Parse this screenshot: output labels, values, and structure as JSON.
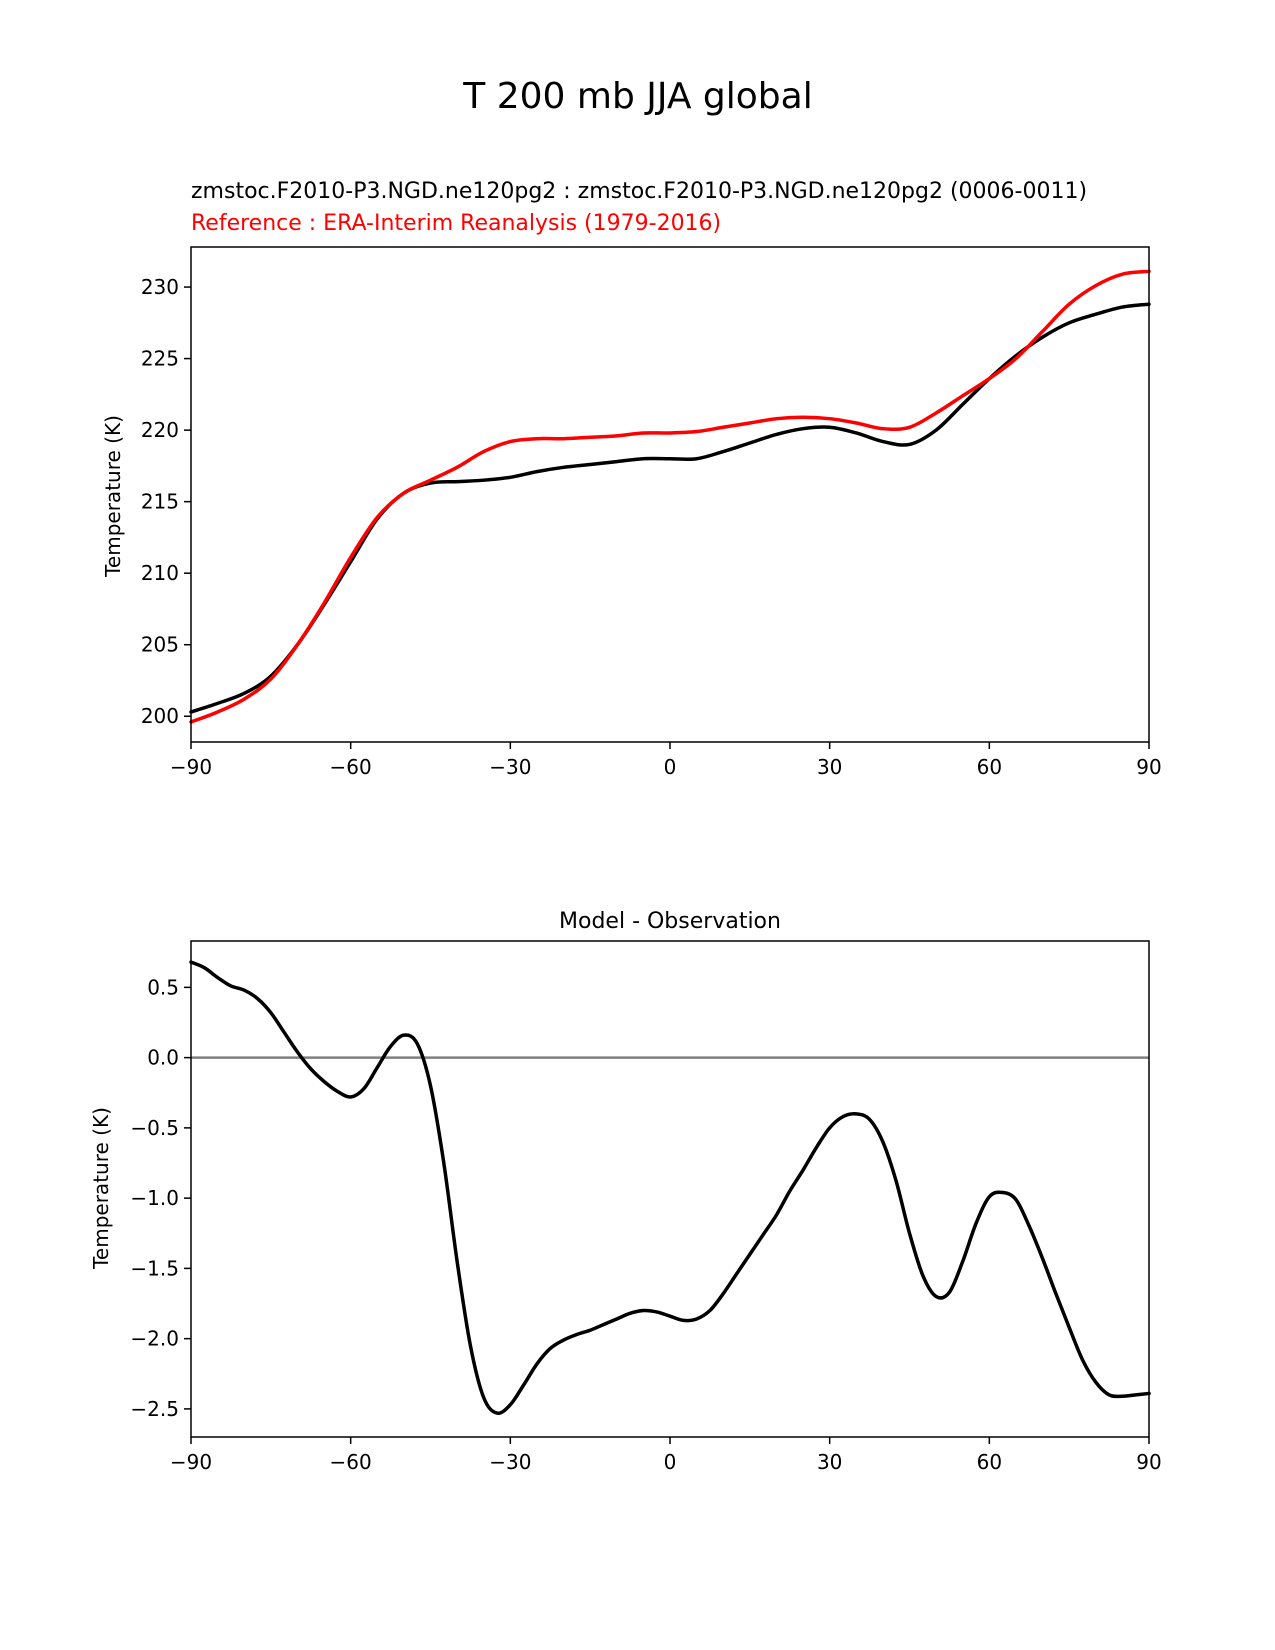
{
  "figure_title": "T 200 mb JJA global",
  "chart_data": [
    {
      "type": "line",
      "title": "zmstoc.F2010-P3.NGD.ne120pg2 : zmstoc.F2010-P3.NGD.ne120pg2 (0006-0011)",
      "subtitle": "Reference : ERA-Interim Reanalysis (1979-2016)",
      "xlabel": "",
      "ylabel": "Temperature (K)",
      "xlim": [
        -90,
        90
      ],
      "ylim": [
        198.2,
        232.8
      ],
      "xticks": [
        -90,
        -60,
        -30,
        0,
        30,
        60,
        90
      ],
      "xtick_labels": [
        "−90",
        "−60",
        "−30",
        "0",
        "30",
        "60",
        "90"
      ],
      "yticks": [
        200,
        205,
        210,
        215,
        220,
        225,
        230
      ],
      "ytick_labels": [
        "200",
        "205",
        "210",
        "215",
        "220",
        "225",
        "230"
      ],
      "grid": false,
      "series": [
        {
          "name": "zmstoc.F2010-P3.NGD.ne120pg2",
          "color": "#000000",
          "x": [
            -90,
            -85,
            -80,
            -75,
            -70,
            -65,
            -60,
            -55,
            -50,
            -45,
            -40,
            -35,
            -30,
            -25,
            -20,
            -15,
            -10,
            -5,
            0,
            5,
            10,
            15,
            20,
            25,
            30,
            35,
            40,
            45,
            50,
            55,
            60,
            65,
            70,
            75,
            80,
            85,
            90
          ],
          "values": [
            200.3,
            200.9,
            201.6,
            202.8,
            205.0,
            207.8,
            210.8,
            213.8,
            215.6,
            216.3,
            216.4,
            216.5,
            216.7,
            217.1,
            217.4,
            217.6,
            217.8,
            218.0,
            218.0,
            218.0,
            218.5,
            219.1,
            219.7,
            220.1,
            220.2,
            219.8,
            219.2,
            219.0,
            220.0,
            221.8,
            223.6,
            225.2,
            226.5,
            227.5,
            228.1,
            228.6,
            228.8
          ]
        },
        {
          "name": "Reference : ERA-Interim Reanalysis (1979-2016)",
          "color": "#ff0000",
          "x": [
            -90,
            -85,
            -80,
            -75,
            -70,
            -65,
            -60,
            -55,
            -50,
            -45,
            -40,
            -35,
            -30,
            -25,
            -20,
            -15,
            -10,
            -5,
            0,
            5,
            10,
            15,
            20,
            25,
            30,
            35,
            40,
            45,
            50,
            55,
            60,
            65,
            70,
            75,
            80,
            85,
            90
          ],
          "values": [
            199.6,
            200.3,
            201.2,
            202.6,
            205.0,
            207.9,
            211.1,
            213.9,
            215.6,
            216.5,
            217.4,
            218.5,
            219.2,
            219.4,
            219.4,
            219.5,
            219.6,
            219.8,
            219.8,
            219.9,
            220.2,
            220.5,
            220.8,
            220.9,
            220.8,
            220.5,
            220.1,
            220.2,
            221.2,
            222.4,
            223.6,
            225.0,
            226.9,
            228.8,
            230.1,
            230.9,
            231.1
          ]
        }
      ]
    },
    {
      "type": "line",
      "title": "Model - Observation",
      "xlabel": "",
      "ylabel": "Temperature (K)",
      "xlim": [
        -90,
        90
      ],
      "ylim": [
        -2.7,
        0.83
      ],
      "xticks": [
        -90,
        -60,
        -30,
        0,
        30,
        60,
        90
      ],
      "xtick_labels": [
        "−90",
        "−60",
        "−30",
        "0",
        "30",
        "60",
        "90"
      ],
      "yticks": [
        0.5,
        0.0,
        -0.5,
        -1.0,
        -1.5,
        -2.0,
        -2.5
      ],
      "ytick_labels": [
        "0.5",
        "0.0",
        "−0.5",
        "−1.0",
        "−1.5",
        "−2.0",
        "−2.5"
      ],
      "grid": false,
      "zero_line": {
        "y": 0.0,
        "color": "#808080"
      },
      "series": [
        {
          "name": "Model - Observation",
          "color": "#000000",
          "x": [
            -90,
            -87.5,
            -85,
            -82.5,
            -80,
            -77.5,
            -75,
            -72.5,
            -70,
            -67.5,
            -65,
            -62.5,
            -60,
            -57.5,
            -55,
            -52.5,
            -50,
            -47.5,
            -45,
            -42.5,
            -40,
            -37.5,
            -35,
            -32.5,
            -30,
            -27.5,
            -25,
            -22.5,
            -20,
            -17.5,
            -15,
            -12.5,
            -10,
            -7.5,
            -5,
            -2.5,
            0,
            2.5,
            5,
            7.5,
            10,
            12.5,
            15,
            17.5,
            20,
            22.5,
            25,
            27.5,
            30,
            32.5,
            35,
            37.5,
            40,
            42.5,
            45,
            47.5,
            50,
            52.5,
            55,
            57.5,
            60,
            62.5,
            65,
            67.5,
            70,
            72.5,
            75,
            77.5,
            80,
            82.5,
            85,
            87.5,
            90
          ],
          "values": [
            0.68,
            0.64,
            0.57,
            0.51,
            0.48,
            0.42,
            0.32,
            0.18,
            0.04,
            -0.08,
            -0.17,
            -0.24,
            -0.28,
            -0.22,
            -0.07,
            0.08,
            0.16,
            0.1,
            -0.2,
            -0.75,
            -1.45,
            -2.05,
            -2.42,
            -2.53,
            -2.47,
            -2.33,
            -2.18,
            -2.07,
            -2.01,
            -1.97,
            -1.94,
            -1.9,
            -1.86,
            -1.82,
            -1.8,
            -1.81,
            -1.84,
            -1.87,
            -1.86,
            -1.8,
            -1.68,
            -1.54,
            -1.4,
            -1.26,
            -1.12,
            -0.95,
            -0.8,
            -0.64,
            -0.5,
            -0.42,
            -0.4,
            -0.44,
            -0.6,
            -0.88,
            -1.25,
            -1.55,
            -1.7,
            -1.67,
            -1.45,
            -1.18,
            -0.99,
            -0.96,
            -1.01,
            -1.2,
            -1.43,
            -1.68,
            -1.92,
            -2.15,
            -2.31,
            -2.4,
            -2.41,
            -2.4,
            -2.39
          ]
        }
      ]
    }
  ]
}
